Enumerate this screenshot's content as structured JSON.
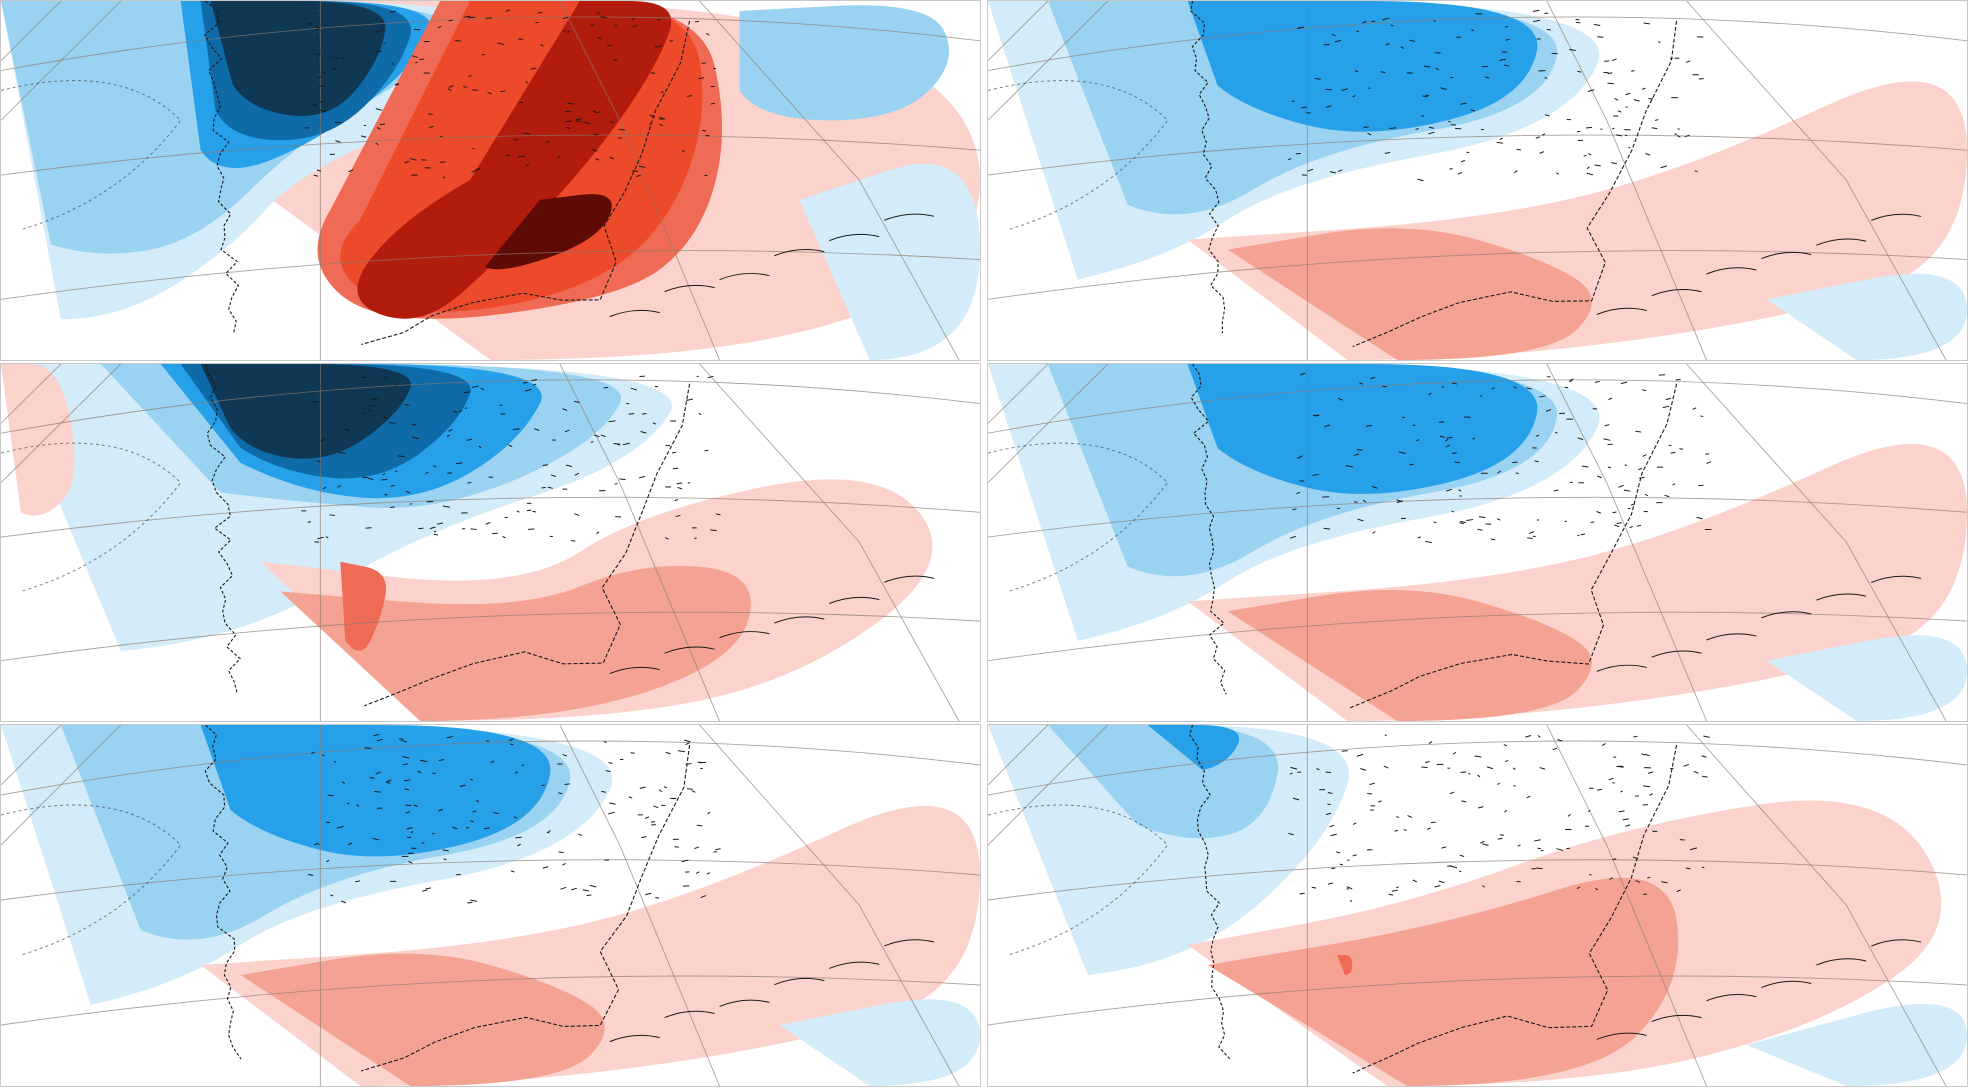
{
  "layout": {
    "rows": 3,
    "cols": 2
  },
  "palette": {
    "cold_4": "#0e3854",
    "cold_3": "#0f6aa8",
    "cold_2": "#26a0e8",
    "cold_1": "#9ad2f2",
    "cold_0": "#d4ecf9",
    "neutral": "#ffffff",
    "warm_0": "#fbd2cc",
    "warm_1": "#f4a393",
    "warm_2": "#f06b55",
    "warm_3": "#ec4a2a",
    "warm_4": "#b21c0c",
    "warm_5": "#5e0a05",
    "coast": "#1a1a1a",
    "graticule": "#8c7b6e"
  },
  "panels": [
    {
      "id": "row1-left",
      "pattern": "strong-dipole",
      "icon": "temperature-anomaly-map"
    },
    {
      "id": "row1-right",
      "pattern": "north-cold-south-warm",
      "icon": "temperature-anomaly-map"
    },
    {
      "id": "row2-left",
      "pattern": "northwest-cold-southeast-warm",
      "icon": "temperature-anomaly-map"
    },
    {
      "id": "row2-right",
      "pattern": "north-cold-south-warm",
      "icon": "temperature-anomaly-map"
    },
    {
      "id": "row3-left",
      "pattern": "north-cold-south-warm",
      "icon": "temperature-anomaly-map"
    },
    {
      "id": "row3-right",
      "pattern": "weak-north-cold-broad-warm",
      "icon": "temperature-anomaly-map"
    }
  ]
}
